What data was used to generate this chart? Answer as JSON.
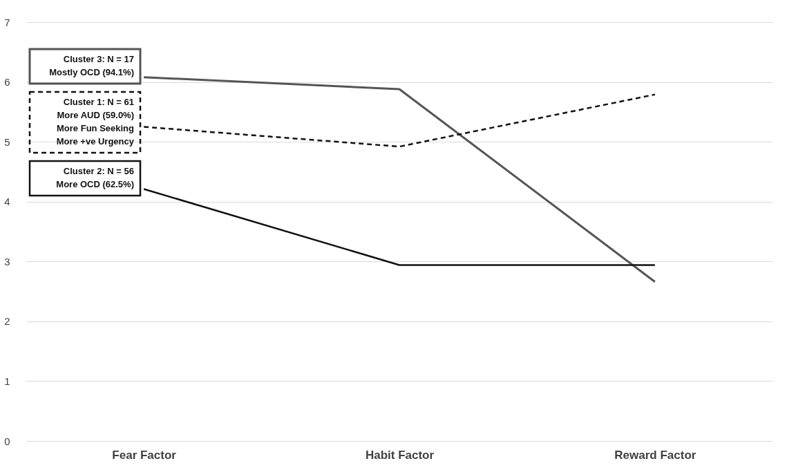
{
  "chart_data": {
    "type": "line",
    "categories": [
      "Fear Factor",
      "Habit Factor",
      "Reward Factor"
    ],
    "series": [
      {
        "color": "#555555",
        "line_style": "solid",
        "values": [
          6.08,
          5.88,
          2.66
        ]
      },
      {
        "color": "#111111",
        "line_style": "dashed",
        "values": [
          5.25,
          4.92,
          5.79
        ]
      },
      {
        "color": "#111111",
        "line_style": "solid",
        "values": [
          4.21,
          2.94,
          2.94
        ]
      }
    ],
    "annotations": [
      "Cluster 3: N = 17\nMostly OCD (94.1%)",
      "Cluster 1: N = 61\nMore AUD (59.0%)\nMore Fun Seeking\nMore +ve Urgency",
      "Cluster 2: N = 56\nMore OCD (62.5%)"
    ],
    "ylim": [
      0,
      7
    ],
    "yticks": [
      0,
      1,
      2,
      3,
      4,
      5,
      6,
      7
    ],
    "grid": "y",
    "marker": "none"
  }
}
